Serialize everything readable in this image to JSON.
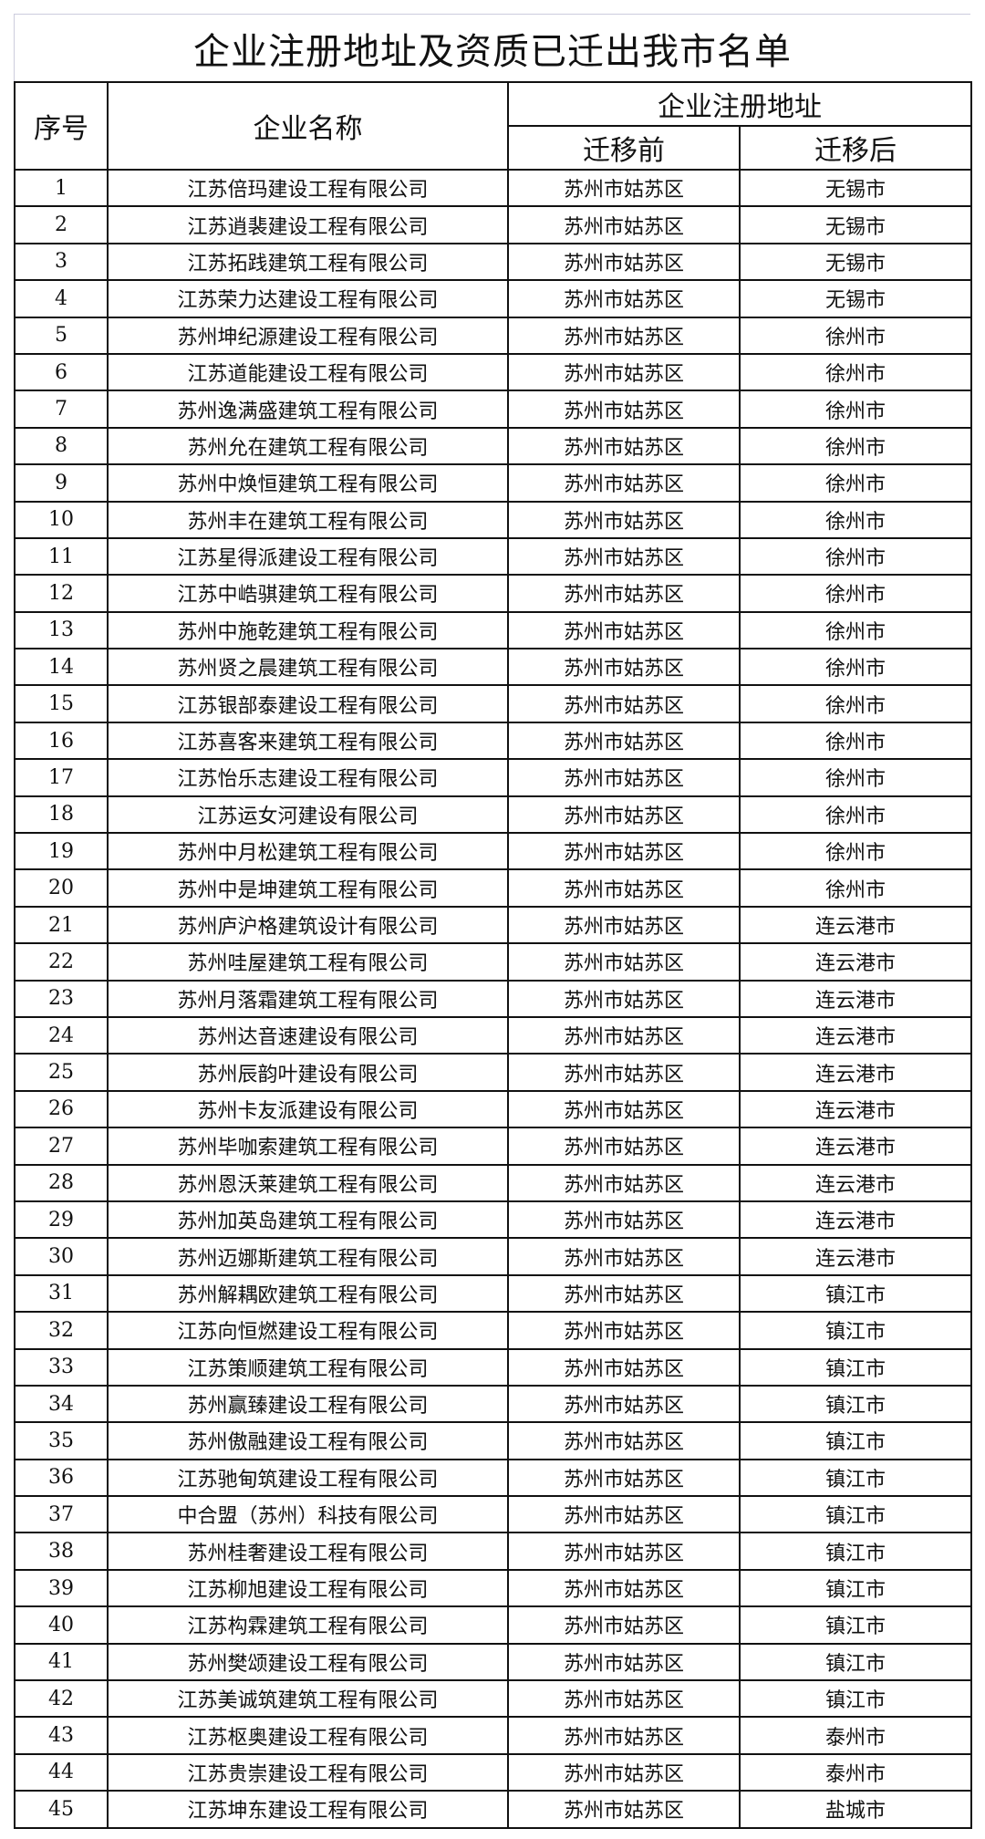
{
  "title": "企业注册地址及资质已迁出我市名单",
  "headers": {
    "no": "序号",
    "name": "企业名称",
    "address": "企业注册地址",
    "before": "迁移前",
    "after": "迁移后"
  },
  "rows": [
    {
      "no": "1",
      "name": "江苏倍玛建设工程有限公司",
      "before": "苏州市姑苏区",
      "after": "无锡市"
    },
    {
      "no": "2",
      "name": "江苏逍裴建设工程有限公司",
      "before": "苏州市姑苏区",
      "after": "无锡市"
    },
    {
      "no": "3",
      "name": "江苏拓践建筑工程有限公司",
      "before": "苏州市姑苏区",
      "after": "无锡市"
    },
    {
      "no": "4",
      "name": "江苏荣力达建设工程有限公司",
      "before": "苏州市姑苏区",
      "after": "无锡市"
    },
    {
      "no": "5",
      "name": "苏州坤纪源建设工程有限公司",
      "before": "苏州市姑苏区",
      "after": "徐州市"
    },
    {
      "no": "6",
      "name": "江苏道能建设工程有限公司",
      "before": "苏州市姑苏区",
      "after": "徐州市"
    },
    {
      "no": "7",
      "name": "苏州逸满盛建筑工程有限公司",
      "before": "苏州市姑苏区",
      "after": "徐州市"
    },
    {
      "no": "8",
      "name": "苏州允在建筑工程有限公司",
      "before": "苏州市姑苏区",
      "after": "徐州市"
    },
    {
      "no": "9",
      "name": "苏州中焕恒建筑工程有限公司",
      "before": "苏州市姑苏区",
      "after": "徐州市"
    },
    {
      "no": "10",
      "name": "苏州丰在建筑工程有限公司",
      "before": "苏州市姑苏区",
      "after": "徐州市"
    },
    {
      "no": "11",
      "name": "江苏星得派建设工程有限公司",
      "before": "苏州市姑苏区",
      "after": "徐州市"
    },
    {
      "no": "12",
      "name": "江苏中峼骐建筑工程有限公司",
      "before": "苏州市姑苏区",
      "after": "徐州市"
    },
    {
      "no": "13",
      "name": "苏州中施乾建筑工程有限公司",
      "before": "苏州市姑苏区",
      "after": "徐州市"
    },
    {
      "no": "14",
      "name": "苏州贤之晨建筑工程有限公司",
      "before": "苏州市姑苏区",
      "after": "徐州市"
    },
    {
      "no": "15",
      "name": "江苏银部泰建设工程有限公司",
      "before": "苏州市姑苏区",
      "after": "徐州市"
    },
    {
      "no": "16",
      "name": "江苏喜客来建筑工程有限公司",
      "before": "苏州市姑苏区",
      "after": "徐州市"
    },
    {
      "no": "17",
      "name": "江苏怡乐志建设工程有限公司",
      "before": "苏州市姑苏区",
      "after": "徐州市"
    },
    {
      "no": "18",
      "name": "江苏运女河建设有限公司",
      "before": "苏州市姑苏区",
      "after": "徐州市"
    },
    {
      "no": "19",
      "name": "苏州中月松建筑工程有限公司",
      "before": "苏州市姑苏区",
      "after": "徐州市"
    },
    {
      "no": "20",
      "name": "苏州中是坤建筑工程有限公司",
      "before": "苏州市姑苏区",
      "after": "徐州市"
    },
    {
      "no": "21",
      "name": "苏州庐沪格建筑设计有限公司",
      "before": "苏州市姑苏区",
      "after": "连云港市"
    },
    {
      "no": "22",
      "name": "苏州哇屋建筑工程有限公司",
      "before": "苏州市姑苏区",
      "after": "连云港市"
    },
    {
      "no": "23",
      "name": "苏州月落霜建筑工程有限公司",
      "before": "苏州市姑苏区",
      "after": "连云港市"
    },
    {
      "no": "24",
      "name": "苏州达音速建设有限公司",
      "before": "苏州市姑苏区",
      "after": "连云港市"
    },
    {
      "no": "25",
      "name": "苏州辰韵叶建设有限公司",
      "before": "苏州市姑苏区",
      "after": "连云港市"
    },
    {
      "no": "26",
      "name": "苏州卡友派建设有限公司",
      "before": "苏州市姑苏区",
      "after": "连云港市"
    },
    {
      "no": "27",
      "name": "苏州毕咖索建筑工程有限公司",
      "before": "苏州市姑苏区",
      "after": "连云港市"
    },
    {
      "no": "28",
      "name": "苏州恩沃莱建筑工程有限公司",
      "before": "苏州市姑苏区",
      "after": "连云港市"
    },
    {
      "no": "29",
      "name": "苏州加英岛建筑工程有限公司",
      "before": "苏州市姑苏区",
      "after": "连云港市"
    },
    {
      "no": "30",
      "name": "苏州迈娜斯建筑工程有限公司",
      "before": "苏州市姑苏区",
      "after": "连云港市"
    },
    {
      "no": "31",
      "name": "苏州解耦欧建筑工程有限公司",
      "before": "苏州市姑苏区",
      "after": "镇江市"
    },
    {
      "no": "32",
      "name": "江苏向恒燃建设工程有限公司",
      "before": "苏州市姑苏区",
      "after": "镇江市"
    },
    {
      "no": "33",
      "name": "江苏策顺建筑工程有限公司",
      "before": "苏州市姑苏区",
      "after": "镇江市"
    },
    {
      "no": "34",
      "name": "苏州赢臻建设工程有限公司",
      "before": "苏州市姑苏区",
      "after": "镇江市"
    },
    {
      "no": "35",
      "name": "苏州傲融建设工程有限公司",
      "before": "苏州市姑苏区",
      "after": "镇江市"
    },
    {
      "no": "36",
      "name": "江苏驰甸筑建设工程有限公司",
      "before": "苏州市姑苏区",
      "after": "镇江市"
    },
    {
      "no": "37",
      "name": "中合盟（苏州）科技有限公司",
      "before": "苏州市姑苏区",
      "after": "镇江市"
    },
    {
      "no": "38",
      "name": "苏州桂奢建设工程有限公司",
      "before": "苏州市姑苏区",
      "after": "镇江市"
    },
    {
      "no": "39",
      "name": "江苏柳旭建设工程有限公司",
      "before": "苏州市姑苏区",
      "after": "镇江市"
    },
    {
      "no": "40",
      "name": "江苏构霖建筑工程有限公司",
      "before": "苏州市姑苏区",
      "after": "镇江市"
    },
    {
      "no": "41",
      "name": "苏州樊颂建设工程有限公司",
      "before": "苏州市姑苏区",
      "after": "镇江市"
    },
    {
      "no": "42",
      "name": "江苏美诚筑建筑工程有限公司",
      "before": "苏州市姑苏区",
      "after": "镇江市"
    },
    {
      "no": "43",
      "name": "江苏枢奥建设工程有限公司",
      "before": "苏州市姑苏区",
      "after": "泰州市"
    },
    {
      "no": "44",
      "name": "江苏贵崇建设工程有限公司",
      "before": "苏州市姑苏区",
      "after": "泰州市"
    },
    {
      "no": "45",
      "name": "江苏坤东建设工程有限公司",
      "before": "苏州市姑苏区",
      "after": "盐城市"
    }
  ]
}
